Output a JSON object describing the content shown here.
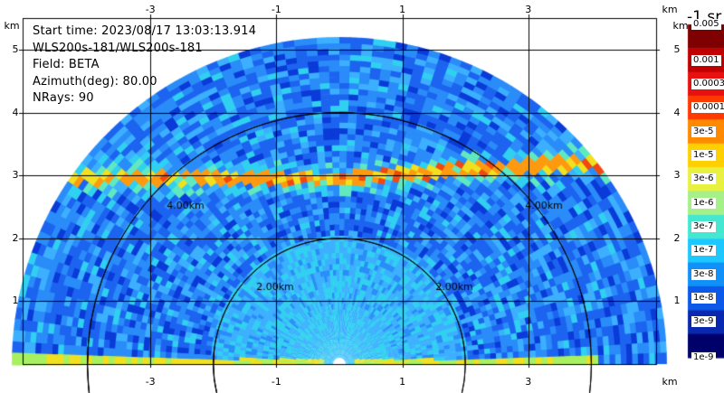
{
  "info_lines": [
    "Start time: 2023/08/17 13:03:13.914",
    "WLS200s-181/WLS200s-181",
    "Field: BETA",
    "Azimuth(deg): 80.00",
    "NRays: 90"
  ],
  "axis": {
    "unit_label": "km",
    "x_ticks": [
      "-3",
      "-1",
      "1",
      "3"
    ],
    "y_ticks": [
      "1",
      "2",
      "3",
      "4",
      "5"
    ]
  },
  "range_rings": [
    "2.00km",
    "4.00km"
  ],
  "colorbar": {
    "title": "-1 sr",
    "labels": [
      "0.005",
      "0.001",
      "0.0003",
      "0.0001",
      "3e-5",
      "1e-5",
      "3e-6",
      "1e-6",
      "3e-7",
      "1e-7",
      "3e-8",
      "1e-8",
      "3e-9",
      "1e-9"
    ],
    "colors": [
      "#7f0000",
      "#c00000",
      "#e81010",
      "#ff3a00",
      "#ff8a00",
      "#ffd000",
      "#e8f040",
      "#a6f08a",
      "#44e8d0",
      "#1cc8ff",
      "#1090f8",
      "#0c58e8",
      "#0828b0",
      "#00006a"
    ]
  },
  "chart_data": {
    "type": "heatmap",
    "title": "",
    "xlabel": "km",
    "ylabel": "km",
    "xlim": [
      -5.05,
      5.05
    ],
    "ylim": [
      0,
      5.85
    ],
    "max_range_km": 5.1,
    "scan": "RHI",
    "azimuth_deg": 80.0,
    "n_rays": 90,
    "field": "BETA",
    "layers": [
      {
        "name": "elevated aerosol layer",
        "height_km": [
          2.9,
          3.4
        ],
        "value": "3e-5 to 1e-5"
      },
      {
        "name": "near-surface layer",
        "height_km": [
          0.0,
          0.1
        ],
        "value": "1e-5"
      }
    ],
    "background_value": "1e-7 to 1e-8"
  }
}
